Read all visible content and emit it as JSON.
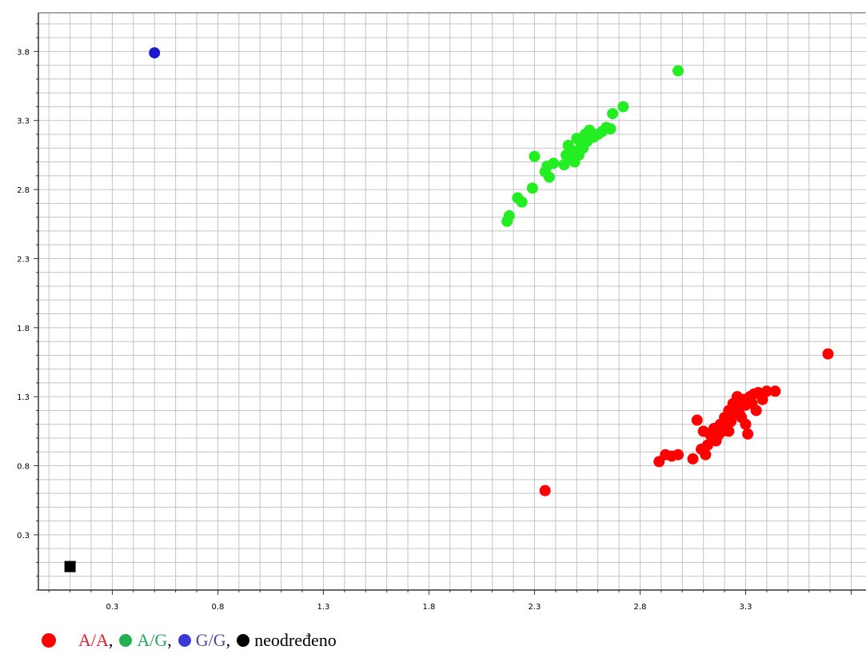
{
  "chart_data": {
    "type": "scatter",
    "title": "",
    "xlabel": "",
    "ylabel": "",
    "xlim": [
      -0.05,
      3.87
    ],
    "ylim": [
      -0.1,
      4.08
    ],
    "x_ticks": [
      "0.3",
      "0.8",
      "1.3",
      "1.8",
      "2.3",
      "2.8",
      "3.3"
    ],
    "y_ticks": [
      "0.3",
      "0.8",
      "1.3",
      "1.8",
      "2.3",
      "2.8",
      "3.3",
      "3.8"
    ],
    "grid": true,
    "legend_position": "bottom",
    "series": [
      {
        "name": "A/A",
        "color": "#ff0000",
        "text_color": "#e0202a",
        "marker": "circle",
        "points": [
          [
            2.35,
            0.62
          ],
          [
            3.69,
            1.61
          ],
          [
            2.89,
            0.83
          ],
          [
            2.92,
            0.88
          ],
          [
            2.95,
            0.87
          ],
          [
            2.98,
            0.88
          ],
          [
            3.05,
            0.85
          ],
          [
            3.07,
            1.13
          ],
          [
            3.09,
            0.92
          ],
          [
            3.1,
            1.05
          ],
          [
            3.11,
            0.88
          ],
          [
            3.12,
            0.95
          ],
          [
            3.13,
            1.03
          ],
          [
            3.14,
            1.0
          ],
          [
            3.15,
            1.07
          ],
          [
            3.16,
            0.98
          ],
          [
            3.17,
            1.02
          ],
          [
            3.18,
            1.1
          ],
          [
            3.19,
            1.05
          ],
          [
            3.2,
            1.15
          ],
          [
            3.21,
            1.08
          ],
          [
            3.22,
            1.2
          ],
          [
            3.23,
            1.12
          ],
          [
            3.24,
            1.25
          ],
          [
            3.25,
            1.18
          ],
          [
            3.26,
            1.3
          ],
          [
            3.27,
            1.22
          ],
          [
            3.28,
            1.15
          ],
          [
            3.29,
            1.28
          ],
          [
            3.3,
            1.1
          ],
          [
            3.31,
            1.03
          ],
          [
            3.32,
            1.3
          ],
          [
            3.33,
            1.25
          ],
          [
            3.34,
            1.32
          ],
          [
            3.35,
            1.2
          ],
          [
            3.36,
            1.33
          ],
          [
            3.38,
            1.28
          ],
          [
            3.4,
            1.34
          ],
          [
            3.44,
            1.34
          ],
          [
            3.22,
            1.05
          ],
          [
            3.27,
            1.18
          ],
          [
            3.3,
            1.24
          ]
        ]
      },
      {
        "name": "A/G",
        "color": "#22ee22",
        "text_color": "#22a860",
        "marker": "circle",
        "points": [
          [
            2.98,
            3.66
          ],
          [
            2.17,
            2.57
          ],
          [
            2.18,
            2.61
          ],
          [
            2.22,
            2.74
          ],
          [
            2.24,
            2.71
          ],
          [
            2.29,
            2.81
          ],
          [
            2.3,
            3.04
          ],
          [
            2.35,
            2.93
          ],
          [
            2.36,
            2.97
          ],
          [
            2.37,
            2.89
          ],
          [
            2.39,
            2.99
          ],
          [
            2.44,
            2.98
          ],
          [
            2.45,
            3.05
          ],
          [
            2.46,
            3.12
          ],
          [
            2.47,
            3.03
          ],
          [
            2.48,
            3.08
          ],
          [
            2.49,
            3.0
          ],
          [
            2.5,
            3.17
          ],
          [
            2.51,
            3.05
          ],
          [
            2.52,
            3.13
          ],
          [
            2.53,
            3.1
          ],
          [
            2.54,
            3.2
          ],
          [
            2.55,
            3.15
          ],
          [
            2.56,
            3.23
          ],
          [
            2.58,
            3.18
          ],
          [
            2.6,
            3.2
          ],
          [
            2.62,
            3.22
          ],
          [
            2.64,
            3.25
          ],
          [
            2.66,
            3.24
          ],
          [
            2.67,
            3.35
          ],
          [
            2.72,
            3.4
          ]
        ]
      },
      {
        "name": "G/G",
        "color": "#1a1ad0",
        "text_color": "#4a4aa0",
        "marker": "circle",
        "points": [
          [
            0.5,
            3.79
          ]
        ]
      },
      {
        "name": "neodređeno",
        "color": "#000000",
        "text_color": "#000000",
        "marker": "square",
        "points": [
          [
            0.1,
            0.07
          ]
        ]
      }
    ]
  },
  "legend": {
    "separator": ","
  }
}
